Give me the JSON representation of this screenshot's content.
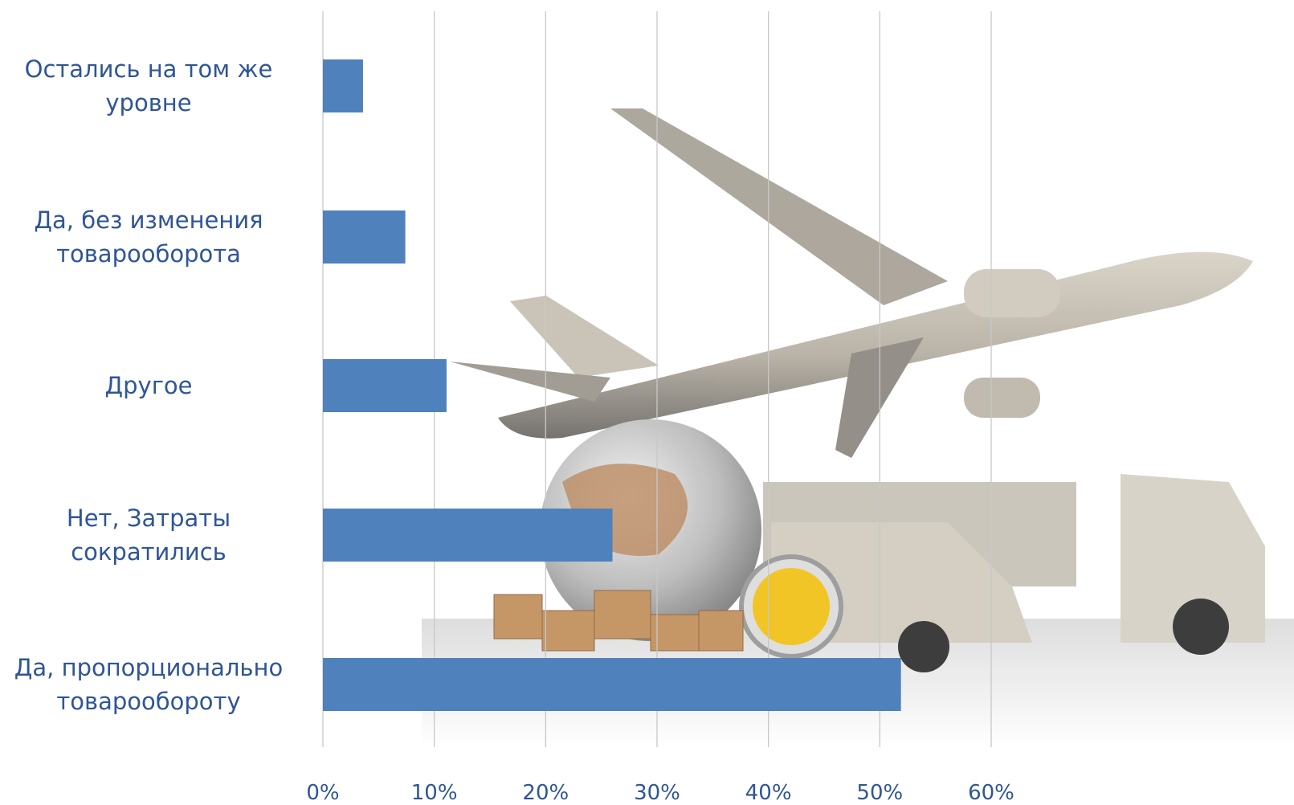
{
  "chart_data": {
    "type": "barh",
    "categories": [
      "Остались на том же уровне",
      "Да, без изменения товарооборота",
      "Другое",
      "Нет, Затраты сократились",
      "Да, пропорционально товарообороту"
    ],
    "values": [
      3.6,
      7.4,
      11.1,
      26.0,
      51.9
    ],
    "color": "#4f81bd",
    "xlim": [
      0,
      60
    ],
    "xticks": [
      {
        "value": 0,
        "label": "0%"
      },
      {
        "value": 10,
        "label": "10%"
      },
      {
        "value": 20,
        "label": "20%"
      },
      {
        "value": 30,
        "label": "30%"
      },
      {
        "value": 40,
        "label": "40%"
      },
      {
        "value": 50,
        "label": "50%"
      },
      {
        "value": 60,
        "label": "60%"
      }
    ],
    "grid": true
  }
}
